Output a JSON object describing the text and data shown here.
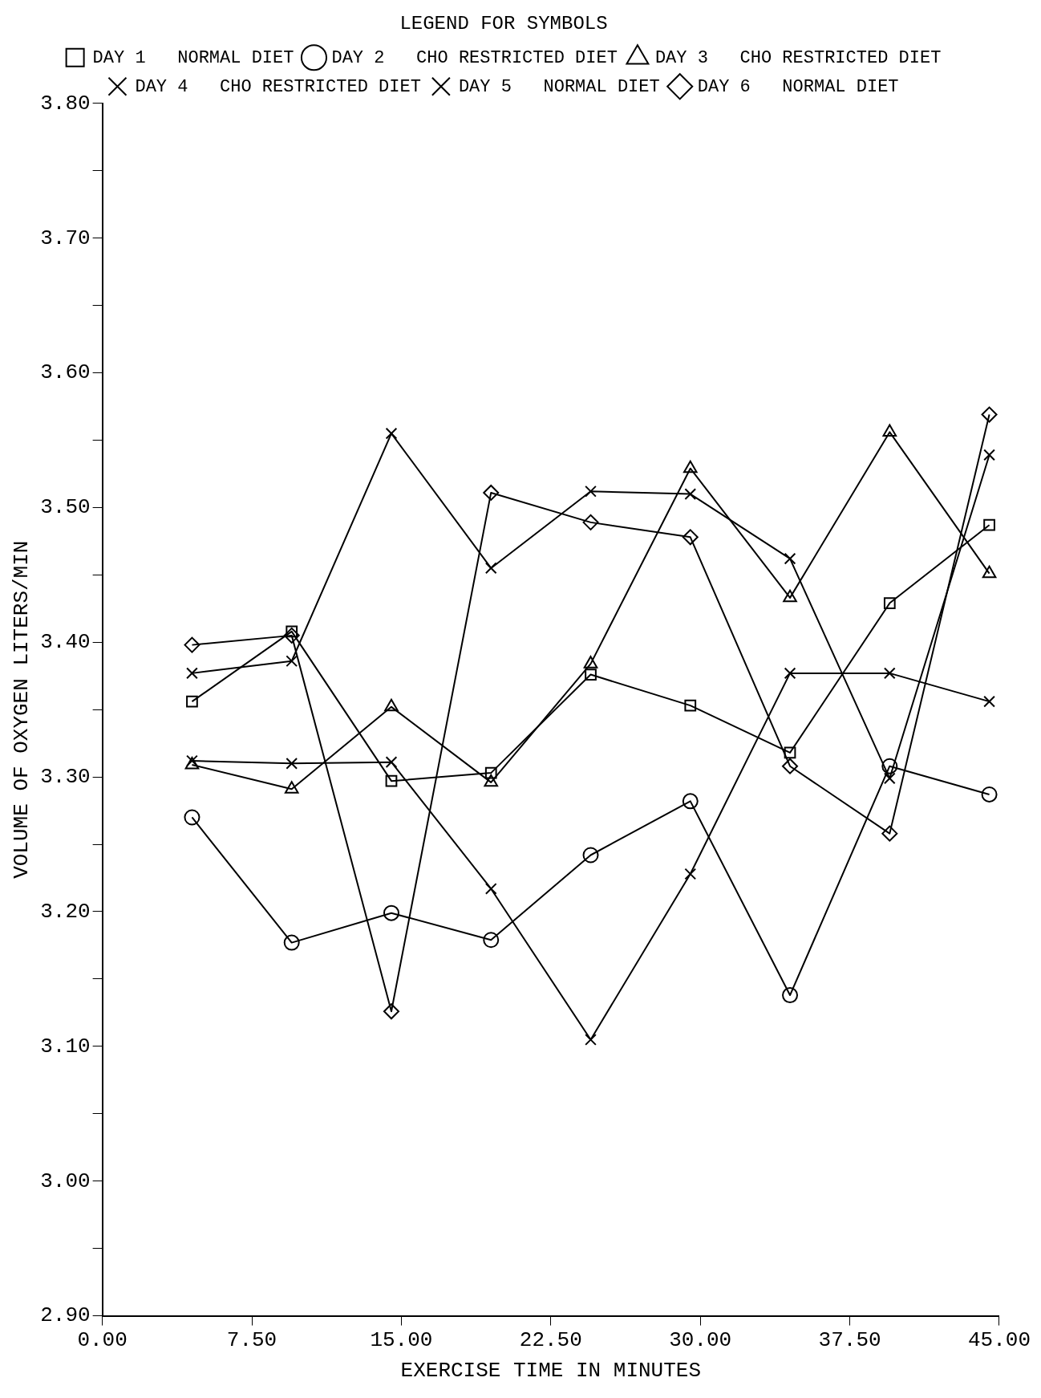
{
  "chart_data": {
    "type": "line",
    "xlabel": "EXERCISE TIME IN MINUTES",
    "ylabel": "VOLUME OF OXYGEN LITERS/MIN",
    "legend_title": "LEGEND FOR SYMBOLS",
    "legend": "top",
    "grid": false,
    "line_style": "solid",
    "x": [
      4.5,
      9.5,
      14.5,
      19.5,
      24.5,
      29.5,
      34.5,
      39.5,
      44.5
    ],
    "xlim": [
      0,
      45
    ],
    "xticks": [
      {
        "value": 0,
        "label": "0.00"
      },
      {
        "value": 7.5,
        "label": "7.50"
      },
      {
        "value": 15,
        "label": "15.00"
      },
      {
        "value": 22.5,
        "label": "22.50"
      },
      {
        "value": 30,
        "label": "30.00"
      },
      {
        "value": 37.5,
        "label": "37.50"
      },
      {
        "value": 45,
        "label": "45.00"
      }
    ],
    "ylim": [
      2.9,
      3.8
    ],
    "yticks": [
      {
        "value": 2.9,
        "label": "2.90"
      },
      {
        "value": 2.95,
        "label": null
      },
      {
        "value": 3.0,
        "label": "3.00"
      },
      {
        "value": 3.05,
        "label": null
      },
      {
        "value": 3.1,
        "label": "3.10"
      },
      {
        "value": 3.15,
        "label": null
      },
      {
        "value": 3.2,
        "label": "3.20"
      },
      {
        "value": 3.25,
        "label": null
      },
      {
        "value": 3.3,
        "label": "3.30"
      },
      {
        "value": 3.35,
        "label": null
      },
      {
        "value": 3.4,
        "label": "3.40"
      },
      {
        "value": 3.45,
        "label": null
      },
      {
        "value": 3.5,
        "label": "3.50"
      },
      {
        "value": 3.55,
        "label": null
      },
      {
        "value": 3.6,
        "label": "3.60"
      },
      {
        "value": 3.65,
        "label": null
      },
      {
        "value": 3.7,
        "label": "3.70"
      },
      {
        "value": 3.75,
        "label": null
      },
      {
        "value": 3.8,
        "label": "3.80"
      }
    ],
    "series": [
      {
        "name": "DAY 1   NORMAL DIET",
        "color": "#000000",
        "marker": "square",
        "values": [
          3.356,
          3.408,
          3.297,
          3.303,
          3.376,
          3.353,
          3.318,
          3.429,
          3.487
        ]
      },
      {
        "name": "DAY 2   CHO RESTRICTED DIET",
        "color": "#000000",
        "marker": "circle",
        "values": [
          3.27,
          3.177,
          3.199,
          3.179,
          3.242,
          3.282,
          3.138,
          3.308,
          3.287
        ]
      },
      {
        "name": "DAY 3   CHO RESTRICTED DIET",
        "color": "#000000",
        "marker": "triangle",
        "values": [
          3.309,
          3.291,
          3.352,
          3.296,
          3.384,
          3.529,
          3.433,
          3.556,
          3.451
        ]
      },
      {
        "name": "DAY 4   CHO RESTRICTED DIET",
        "color": "#000000",
        "marker": "cross",
        "values": [
          3.377,
          3.386,
          3.555,
          3.455,
          3.512,
          3.51,
          3.462,
          3.299,
          3.539
        ]
      },
      {
        "name": "DAY 5   NORMAL DIET",
        "color": "#000000",
        "marker": "cross",
        "values": [
          3.312,
          3.31,
          3.311,
          3.217,
          3.105,
          3.228,
          3.377,
          3.377,
          3.356
        ]
      },
      {
        "name": "DAY 6   NORMAL DIET",
        "color": "#000000",
        "marker": "diamond",
        "values": [
          3.398,
          3.405,
          3.126,
          3.511,
          3.489,
          3.478,
          3.308,
          3.258,
          3.569
        ]
      }
    ]
  }
}
